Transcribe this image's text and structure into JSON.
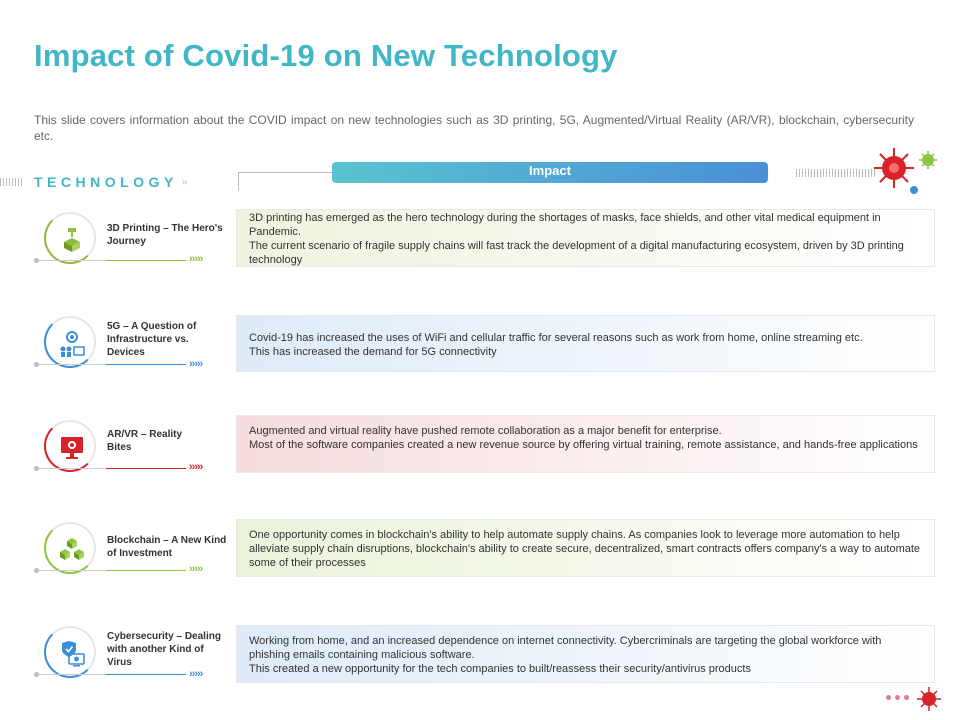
{
  "page": {
    "title": "Impact of Covid-19 on New Technology",
    "subtitle": "This slide covers information about the COVID impact on new technologies such as 3D printing, 5G, Augmented/Virtual Reality (AR/VR), blockchain, cybersecurity etc."
  },
  "headers": {
    "technology": "TECHNOLOGY",
    "impact": "Impact"
  },
  "colors": {
    "accent_teal": "#3fb7c7",
    "green": "#8fbc3a",
    "blue": "#3a8fd9",
    "red": "#d7232a",
    "lime": "#8cc63f",
    "virus_red": "#d7232a"
  },
  "rows": [
    {
      "label": "3D Printing – The Hero's Journey",
      "icon": "3d-printer-icon",
      "color": "#8fbc3a",
      "lines": [
        "3D printing has emerged as the hero technology during the shortages of masks, face shields, and other vital medical equipment in Pandemic.",
        "The current scenario of fragile supply chains will fast track the development of a digital manufacturing ecosystem, driven by 3D printing technology"
      ]
    },
    {
      "label": "5G – A Question of Infrastructure vs. Devices",
      "icon": "network-devices-icon",
      "color": "#3a8fd9",
      "lines": [
        "Covid-19 has increased the uses of WiFi and cellular traffic for several reasons such as work from home, online streaming etc.",
        "This has increased the demand for 5G connectivity"
      ]
    },
    {
      "label": "AR/VR – Reality Bites",
      "icon": "ar-vr-screen-icon",
      "color": "#d7232a",
      "lines": [
        "Augmented and virtual reality have pushed remote collaboration as a major benefit for enterprise.",
        "Most of the software companies created a new revenue source by offering virtual training, remote assistance, and hands-free applications"
      ]
    },
    {
      "label": "Blockchain – A New Kind of Investment",
      "icon": "blockchain-cubes-icon",
      "color": "#8cc63f",
      "lines": [
        "One opportunity comes in blockchain's ability to help automate supply chains. As companies look to leverage more automation to help alleviate supply chain disruptions, blockchain's ability to create secure, decentralized, smart contracts offers company's a way to automate some of their processes"
      ]
    },
    {
      "label": "Cybersecurity – Dealing with another Kind of Virus",
      "icon": "security-shield-icon",
      "color": "#3a8fd9",
      "lines": [
        "Working from home, and an increased dependence on internet connectivity. Cybercriminals are targeting the global workforce with phishing emails containing malicious software.",
        "This created a new opportunity for the tech companies to built/reassess their security/antivirus products"
      ]
    }
  ]
}
